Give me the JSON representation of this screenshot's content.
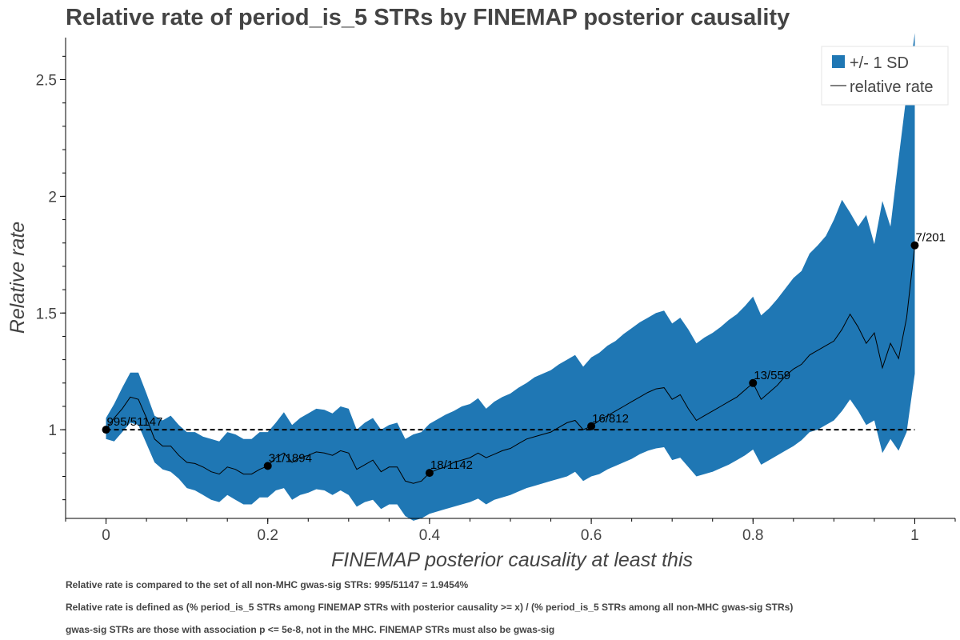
{
  "title": "Relative rate of period_is_5 STRs by FINEMAP posterior causality",
  "footnotes": [
    "Relative rate is compared to the set of all non-MHC gwas-sig STRs: 995/51147 = 1.9454%",
    "Relative rate is defined as (% period_is_5 STRs among FINEMAP STRs with posterior causality >= x) / (% period_is_5 STRs among all non-MHC gwas-sig STRs)",
    "gwas-sig STRs are those with association p <= 5e-8, not in the MHC. FINEMAP STRs must also be gwas-sig"
  ],
  "colors": {
    "band": "#1f77b4",
    "line": "#000000",
    "text": "#444444"
  },
  "chart_data": {
    "type": "area",
    "xlabel": "FINEMAP posterior causality at least this",
    "ylabel": "Relative rate",
    "xlim": [
      -0.05,
      1.05
    ],
    "ylim": [
      0.62,
      2.68
    ],
    "x_ticks": [
      0,
      0.2,
      0.4,
      0.6,
      0.8,
      1
    ],
    "x_tick_labels": [
      "0",
      "0.2",
      "0.4",
      "0.6",
      "0.8",
      "1"
    ],
    "y_ticks": [
      1,
      1.5,
      2,
      2.5
    ],
    "y_tick_labels": [
      "1",
      "1.5",
      "2",
      "2.5"
    ],
    "grid": false,
    "legend_position": "top-right",
    "legend": [
      {
        "label": "+/- 1 SD",
        "kind": "band"
      },
      {
        "label": "relative rate",
        "kind": "line"
      }
    ],
    "reference_line": {
      "y": 1,
      "style": "dashed"
    },
    "x": [
      0,
      0.01,
      0.02,
      0.03,
      0.04,
      0.05,
      0.06,
      0.07,
      0.08,
      0.09,
      0.1,
      0.11,
      0.12,
      0.13,
      0.14,
      0.15,
      0.16,
      0.17,
      0.18,
      0.19,
      0.2,
      0.21,
      0.22,
      0.23,
      0.24,
      0.25,
      0.26,
      0.27,
      0.28,
      0.29,
      0.3,
      0.31,
      0.32,
      0.33,
      0.34,
      0.35,
      0.36,
      0.37,
      0.38,
      0.39,
      0.4,
      0.41,
      0.42,
      0.43,
      0.44,
      0.45,
      0.46,
      0.47,
      0.48,
      0.49,
      0.5,
      0.51,
      0.52,
      0.53,
      0.54,
      0.55,
      0.56,
      0.57,
      0.58,
      0.59,
      0.6,
      0.61,
      0.62,
      0.63,
      0.64,
      0.65,
      0.66,
      0.67,
      0.68,
      0.69,
      0.7,
      0.71,
      0.72,
      0.73,
      0.74,
      0.75,
      0.76,
      0.77,
      0.78,
      0.79,
      0.8,
      0.81,
      0.82,
      0.83,
      0.84,
      0.85,
      0.86,
      0.87,
      0.88,
      0.89,
      0.9,
      0.91,
      0.92,
      0.93,
      0.94,
      0.95,
      0.96,
      0.97,
      0.98,
      0.99,
      1
    ],
    "series": [
      {
        "name": "relative rate",
        "values": [
          1.0,
          1.05,
          1.09,
          1.14,
          1.13,
          1.05,
          0.96,
          0.93,
          0.93,
          0.89,
          0.86,
          0.855,
          0.84,
          0.82,
          0.81,
          0.84,
          0.83,
          0.81,
          0.81,
          0.83,
          0.845,
          0.88,
          0.9,
          0.86,
          0.88,
          0.89,
          0.905,
          0.9,
          0.89,
          0.91,
          0.9,
          0.83,
          0.85,
          0.87,
          0.82,
          0.84,
          0.84,
          0.78,
          0.77,
          0.78,
          0.815,
          0.83,
          0.84,
          0.86,
          0.87,
          0.88,
          0.9,
          0.88,
          0.895,
          0.91,
          0.92,
          0.94,
          0.96,
          0.97,
          0.98,
          0.99,
          1.01,
          1.03,
          1.04,
          1.0,
          1.015,
          1.04,
          1.06,
          1.08,
          1.1,
          1.12,
          1.14,
          1.16,
          1.175,
          1.18,
          1.13,
          1.15,
          1.09,
          1.04,
          1.06,
          1.08,
          1.1,
          1.12,
          1.14,
          1.17,
          1.2,
          1.13,
          1.16,
          1.19,
          1.23,
          1.26,
          1.28,
          1.32,
          1.34,
          1.36,
          1.38,
          1.43,
          1.495,
          1.44,
          1.37,
          1.415,
          1.265,
          1.37,
          1.305,
          1.48,
          1.79
        ],
        "lower": [
          0.96,
          0.95,
          0.99,
          1.03,
          1.02,
          0.94,
          0.86,
          0.83,
          0.82,
          0.79,
          0.75,
          0.74,
          0.72,
          0.7,
          0.69,
          0.72,
          0.7,
          0.68,
          0.68,
          0.71,
          0.71,
          0.74,
          0.75,
          0.7,
          0.72,
          0.73,
          0.745,
          0.74,
          0.72,
          0.74,
          0.72,
          0.67,
          0.69,
          0.7,
          0.66,
          0.68,
          0.68,
          0.63,
          0.61,
          0.62,
          0.64,
          0.65,
          0.66,
          0.67,
          0.68,
          0.69,
          0.705,
          0.68,
          0.7,
          0.71,
          0.72,
          0.735,
          0.75,
          0.76,
          0.77,
          0.78,
          0.79,
          0.8,
          0.82,
          0.78,
          0.8,
          0.81,
          0.83,
          0.845,
          0.86,
          0.875,
          0.895,
          0.91,
          0.92,
          0.925,
          0.87,
          0.88,
          0.84,
          0.8,
          0.81,
          0.82,
          0.835,
          0.85,
          0.87,
          0.89,
          0.915,
          0.85,
          0.87,
          0.89,
          0.91,
          0.93,
          0.955,
          0.99,
          1.0,
          1.02,
          1.04,
          1.08,
          1.13,
          1.08,
          1.02,
          1.04,
          0.9,
          0.96,
          0.91,
          0.99,
          1.24
        ],
        "upper": [
          1.05,
          1.11,
          1.18,
          1.245,
          1.245,
          1.155,
          1.06,
          1.04,
          1.06,
          1.02,
          0.99,
          0.99,
          0.97,
          0.96,
          0.95,
          0.99,
          0.98,
          0.96,
          0.96,
          0.99,
          0.99,
          1.03,
          1.075,
          1.02,
          1.05,
          1.07,
          1.09,
          1.085,
          1.07,
          1.1,
          1.09,
          1.0,
          1.03,
          1.05,
          1.0,
          1.02,
          1.03,
          0.96,
          0.98,
          0.99,
          1.025,
          1.045,
          1.065,
          1.08,
          1.1,
          1.11,
          1.135,
          1.09,
          1.12,
          1.14,
          1.155,
          1.18,
          1.2,
          1.225,
          1.24,
          1.255,
          1.28,
          1.3,
          1.32,
          1.27,
          1.31,
          1.33,
          1.36,
          1.38,
          1.41,
          1.435,
          1.46,
          1.48,
          1.5,
          1.51,
          1.455,
          1.48,
          1.43,
          1.37,
          1.395,
          1.415,
          1.44,
          1.47,
          1.495,
          1.53,
          1.57,
          1.49,
          1.52,
          1.56,
          1.605,
          1.65,
          1.68,
          1.755,
          1.79,
          1.83,
          1.9,
          1.985,
          1.93,
          1.87,
          1.92,
          1.795,
          1.98,
          1.87,
          2.16,
          2.44,
          2.7
        ]
      }
    ],
    "annotations": [
      {
        "x": 0,
        "y": 1.0,
        "label": "995/51147"
      },
      {
        "x": 0.2,
        "y": 0.845,
        "label": "31/1894"
      },
      {
        "x": 0.4,
        "y": 0.815,
        "label": "18/1142"
      },
      {
        "x": 0.6,
        "y": 1.015,
        "label": "16/812"
      },
      {
        "x": 0.8,
        "y": 1.2,
        "label": "13/559"
      },
      {
        "x": 1,
        "y": 1.79,
        "label": "7/201"
      }
    ]
  }
}
